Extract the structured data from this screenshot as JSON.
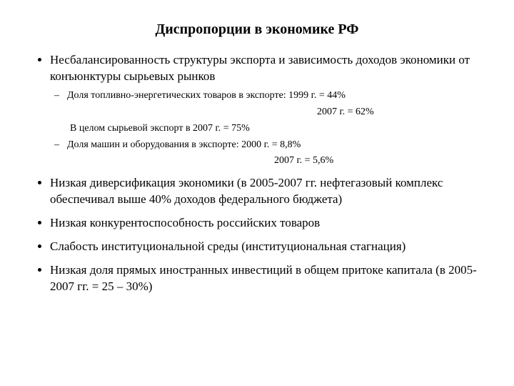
{
  "background_color": "#ffffff",
  "text_color": "#000000",
  "title": {
    "text": "Диспропорции в экономике РФ",
    "fontsize": 20,
    "fontweight": "bold",
    "align": "center"
  },
  "body_fontsize_level1": 17,
  "body_fontsize_level2": 14,
  "font_family": "Times New Roman",
  "bullets": [
    {
      "text": "Несбалансированность структуры экспорта и зависимость доходов экономики от конъюнктуры сырьевых рынков",
      "sub": [
        {
          "type": "dash",
          "text": "Доля топливно-энергетических товаров в экспорте: 1999 г. = 44%"
        },
        {
          "type": "indent_far",
          "text": "2007 г. = 62%"
        },
        {
          "type": "plain",
          "text": "В целом сырьевой экспорт в 2007 г. = 75%"
        },
        {
          "type": "dash",
          "text": "Доля машин и оборудования в экспорте: 2000 г. = 8,8%"
        },
        {
          "type": "indent_mid",
          "text": "2007 г. = 5,6%"
        }
      ]
    },
    {
      "text": " Низкая диверсификация экономики (в 2005-2007 гг. нефтегазовый комплекс обеспечивал выше 40% доходов федерального бюджета)"
    },
    {
      "text": "Низкая конкурентоспособность российских товаров"
    },
    {
      "text": "Слабость институциональной среды (институциональная стагнация)"
    },
    {
      "text": "Низкая доля прямых иностранных инвестиций в общем притоке капитала (в 2005-2007 гг. = 25 – 30%)"
    }
  ]
}
